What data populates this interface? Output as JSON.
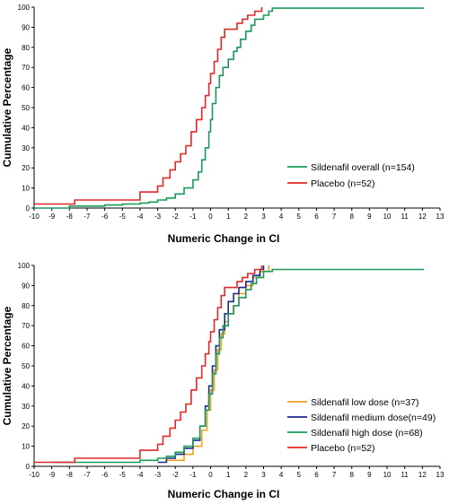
{
  "chart_data": [
    {
      "type": "line",
      "step": true,
      "xlabel": "Numeric Change in CI",
      "ylabel": "Cumulative Percentage",
      "xlim": [
        -10,
        13
      ],
      "ylim": [
        0,
        100
      ],
      "xticks": [
        "-10",
        "-9",
        "-8",
        "-7",
        "-6",
        "-5",
        "-4",
        "-3",
        "-2",
        "-1",
        "0",
        "1",
        "2",
        "3",
        "4",
        "5",
        "6",
        "7",
        "8",
        "9",
        "10",
        "11",
        "12",
        "13"
      ],
      "yticks": [
        "0",
        "10",
        "20",
        "30",
        "40",
        "50",
        "60",
        "70",
        "80",
        "90",
        "100"
      ],
      "legend": "bottom-right",
      "series": [
        {
          "name": "Sildenafil overall (n=154)",
          "color": "#1a9a5a",
          "points": [
            [
              -10,
              0
            ],
            [
              -8,
              1
            ],
            [
              -6,
              1.5
            ],
            [
              -5,
              2
            ],
            [
              -4,
              2.5
            ],
            [
              -3.5,
              3
            ],
            [
              -3,
              4
            ],
            [
              -2.5,
              5
            ],
            [
              -2,
              7
            ],
            [
              -1.5,
              10
            ],
            [
              -1,
              14
            ],
            [
              -0.7,
              18
            ],
            [
              -0.5,
              24
            ],
            [
              -0.3,
              30
            ],
            [
              -0.1,
              38
            ],
            [
              0,
              44
            ],
            [
              0.1,
              52
            ],
            [
              0.3,
              60
            ],
            [
              0.5,
              66
            ],
            [
              0.7,
              70
            ],
            [
              1,
              74
            ],
            [
              1.3,
              78
            ],
            [
              1.5,
              80
            ],
            [
              1.7,
              84
            ],
            [
              2,
              88
            ],
            [
              2.3,
              91
            ],
            [
              2.5,
              94
            ],
            [
              3,
              96
            ],
            [
              3.3,
              98
            ],
            [
              3.5,
              99.5
            ],
            [
              12.1,
              99.5
            ]
          ]
        },
        {
          "name": "Placebo (n=52)",
          "color": "#e02828",
          "points": [
            [
              -10,
              2
            ],
            [
              -7.7,
              4
            ],
            [
              -4,
              8
            ],
            [
              -3,
              11
            ],
            [
              -2.7,
              15
            ],
            [
              -2.3,
              19
            ],
            [
              -2,
              23
            ],
            [
              -1.7,
              27
            ],
            [
              -1.4,
              31
            ],
            [
              -1.1,
              38
            ],
            [
              -0.8,
              44
            ],
            [
              -0.5,
              50
            ],
            [
              -0.3,
              56
            ],
            [
              -0.1,
              62
            ],
            [
              0,
              67
            ],
            [
              0.2,
              73
            ],
            [
              0.4,
              79
            ],
            [
              0.6,
              85
            ],
            [
              0.8,
              89
            ],
            [
              1.5,
              92
            ],
            [
              1.8,
              94
            ],
            [
              2.1,
              96
            ],
            [
              2.5,
              98
            ],
            [
              2.9,
              100
            ]
          ]
        }
      ]
    },
    {
      "type": "line",
      "step": true,
      "xlabel": "Numeric Change in CI",
      "ylabel": "Cumulative Percentage",
      "xlim": [
        -10,
        13
      ],
      "ylim": [
        0,
        100
      ],
      "xticks": [
        "-10",
        "-9",
        "-8",
        "-7",
        "-6",
        "-5",
        "-4",
        "-3",
        "-2",
        "-1",
        "0",
        "1",
        "2",
        "3",
        "4",
        "5",
        "6",
        "7",
        "8",
        "9",
        "10",
        "11",
        "12",
        "13"
      ],
      "yticks": [
        "0",
        "10",
        "20",
        "30",
        "40",
        "50",
        "60",
        "70",
        "80",
        "90",
        "100"
      ],
      "legend": "bottom-right",
      "series": [
        {
          "name": "Sildenafil low dose (n=37)",
          "color": "#f0a020",
          "points": [
            [
              -2.5,
              3
            ],
            [
              -1.5,
              6
            ],
            [
              -1,
              10
            ],
            [
              -0.5,
              18
            ],
            [
              -0.2,
              28
            ],
            [
              0,
              38
            ],
            [
              0.2,
              48
            ],
            [
              0.4,
              58
            ],
            [
              0.6,
              66
            ],
            [
              0.8,
              72
            ],
            [
              1,
              76
            ],
            [
              1.3,
              80
            ],
            [
              1.6,
              86
            ],
            [
              2,
              90
            ],
            [
              2.4,
              94
            ],
            [
              2.8,
              97
            ],
            [
              3.3,
              100
            ]
          ]
        },
        {
          "name": "Sildenafil medium dose(n=49)",
          "color": "#1c2a8a",
          "points": [
            [
              -3,
              2
            ],
            [
              -2.5,
              4
            ],
            [
              -2,
              6
            ],
            [
              -1.5,
              9
            ],
            [
              -1,
              13
            ],
            [
              -0.6,
              20
            ],
            [
              -0.3,
              30
            ],
            [
              -0.1,
              40
            ],
            [
              0.1,
              50
            ],
            [
              0.3,
              60
            ],
            [
              0.5,
              68
            ],
            [
              0.8,
              76
            ],
            [
              1,
              82
            ],
            [
              1.3,
              86
            ],
            [
              1.6,
              89
            ],
            [
              2,
              92
            ],
            [
              2.4,
              95
            ],
            [
              2.8,
              98
            ],
            [
              3,
              100
            ]
          ]
        },
        {
          "name": "Sildenafil high dose (n=68)",
          "color": "#1a9a5a",
          "points": [
            [
              -9,
              2
            ],
            [
              -4,
              3
            ],
            [
              -3,
              4
            ],
            [
              -2.5,
              5
            ],
            [
              -2,
              7
            ],
            [
              -1.5,
              10
            ],
            [
              -1,
              14
            ],
            [
              -0.6,
              20
            ],
            [
              -0.3,
              28
            ],
            [
              -0.1,
              36
            ],
            [
              0.1,
              46
            ],
            [
              0.3,
              56
            ],
            [
              0.5,
              64
            ],
            [
              0.7,
              70
            ],
            [
              1,
              76
            ],
            [
              1.3,
              80
            ],
            [
              1.6,
              84
            ],
            [
              2,
              88
            ],
            [
              2.3,
              91
            ],
            [
              2.6,
              94
            ],
            [
              3,
              97
            ],
            [
              3.5,
              98
            ],
            [
              12.1,
              98
            ]
          ]
        },
        {
          "name": "Placebo (n=52)",
          "color": "#e02828",
          "points": [
            [
              -10,
              2
            ],
            [
              -7.7,
              4
            ],
            [
              -4,
              8
            ],
            [
              -3,
              11
            ],
            [
              -2.7,
              15
            ],
            [
              -2.3,
              19
            ],
            [
              -2,
              23
            ],
            [
              -1.7,
              27
            ],
            [
              -1.4,
              31
            ],
            [
              -1.1,
              38
            ],
            [
              -0.8,
              44
            ],
            [
              -0.5,
              50
            ],
            [
              -0.3,
              56
            ],
            [
              -0.1,
              62
            ],
            [
              0,
              67
            ],
            [
              0.2,
              73
            ],
            [
              0.4,
              79
            ],
            [
              0.6,
              85
            ],
            [
              0.8,
              89
            ],
            [
              1.5,
              92
            ],
            [
              1.8,
              94
            ],
            [
              2.1,
              96
            ],
            [
              2.5,
              98
            ],
            [
              2.9,
              100
            ]
          ]
        }
      ]
    }
  ]
}
